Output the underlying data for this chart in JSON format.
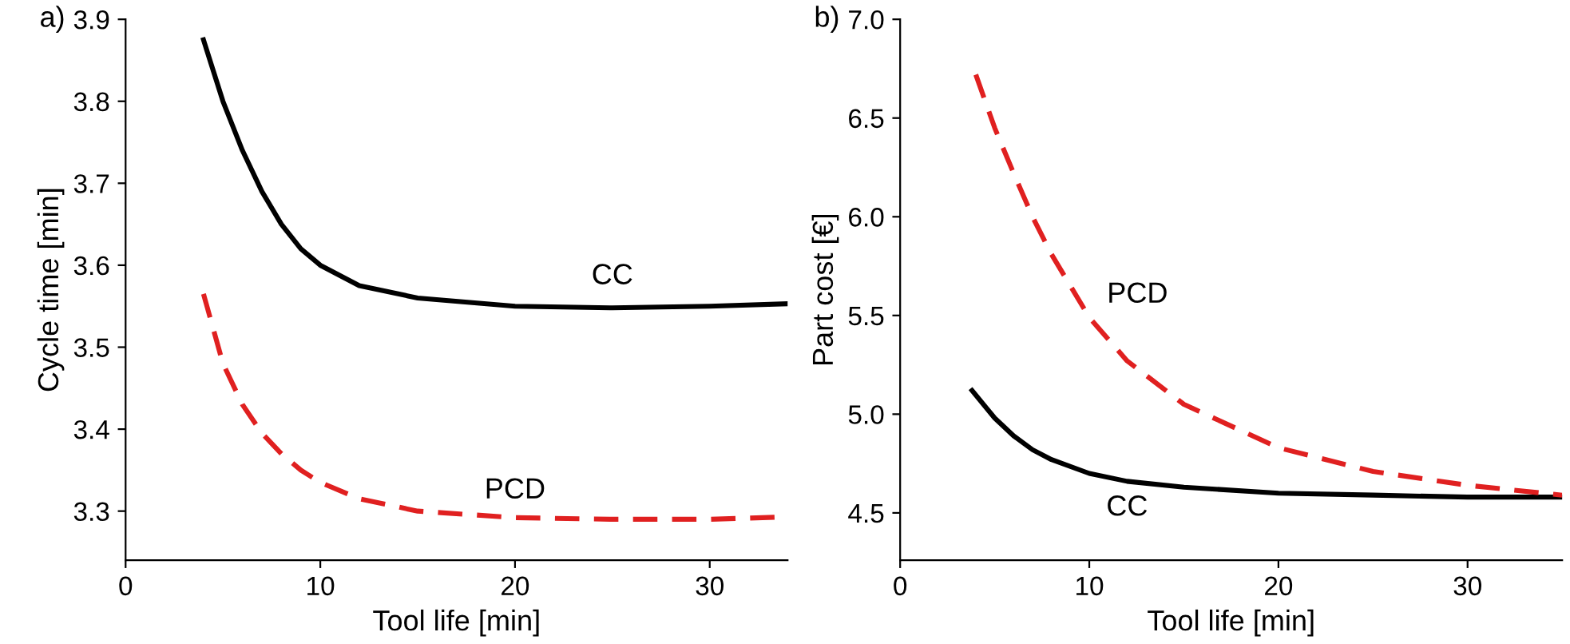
{
  "chart_data": [
    {
      "type": "line",
      "title": "a)",
      "xlabel": "Tool life [min]",
      "ylabel": "Cycle time [min]",
      "xlim": [
        0,
        34
      ],
      "xticks": [
        0,
        10,
        20,
        30
      ],
      "ylim": [
        3.24,
        3.9
      ],
      "yticks": [
        3.3,
        3.4,
        3.5,
        3.6,
        3.7,
        3.8,
        3.9
      ],
      "grid": false,
      "series": [
        {
          "name": "CC",
          "color": "#000000",
          "line_style": "solid",
          "x": [
            4,
            5,
            6,
            7,
            8,
            9,
            10,
            12,
            15,
            20,
            25,
            30,
            34
          ],
          "values": [
            3.875,
            3.8,
            3.74,
            3.69,
            3.65,
            3.62,
            3.6,
            3.575,
            3.56,
            3.55,
            3.548,
            3.55,
            3.553
          ]
        },
        {
          "name": "PCD",
          "color": "#e02020",
          "line_style": "dashed",
          "x": [
            4,
            5,
            6,
            7,
            8,
            9,
            10,
            12,
            15,
            20,
            25,
            30,
            34
          ],
          "values": [
            3.565,
            3.48,
            3.43,
            3.395,
            3.37,
            3.35,
            3.335,
            3.315,
            3.3,
            3.292,
            3.29,
            3.29,
            3.293
          ]
        }
      ]
    },
    {
      "type": "line",
      "title": "b)",
      "xlabel": "Tool life [min]",
      "ylabel": "Part cost [€]",
      "xlim": [
        0,
        35
      ],
      "xticks": [
        0,
        10,
        20,
        30
      ],
      "ylim": [
        4.26,
        7.0
      ],
      "yticks": [
        4.5,
        {
          "value": 5,
          "label": "5.0"
        },
        5.5,
        {
          "value": 6,
          "label": "6.0"
        },
        6.5,
        {
          "value": 7,
          "label": "7.0"
        }
      ],
      "grid": false,
      "series": [
        {
          "name": "CC",
          "color": "#000000",
          "line_style": "solid",
          "x": [
            3.8,
            5,
            6,
            7,
            8,
            10,
            12,
            15,
            20,
            25,
            30,
            35
          ],
          "values": [
            5.12,
            4.98,
            4.89,
            4.82,
            4.77,
            4.7,
            4.66,
            4.63,
            4.6,
            4.59,
            4.58,
            4.58
          ]
        },
        {
          "name": "PCD",
          "color": "#e02020",
          "line_style": "dashed",
          "x": [
            4,
            5,
            6,
            7,
            8,
            10,
            12,
            15,
            20,
            25,
            30,
            35
          ],
          "values": [
            6.72,
            6.45,
            6.22,
            6.0,
            5.81,
            5.49,
            5.27,
            5.05,
            4.83,
            4.71,
            4.64,
            4.59
          ]
        }
      ]
    }
  ]
}
